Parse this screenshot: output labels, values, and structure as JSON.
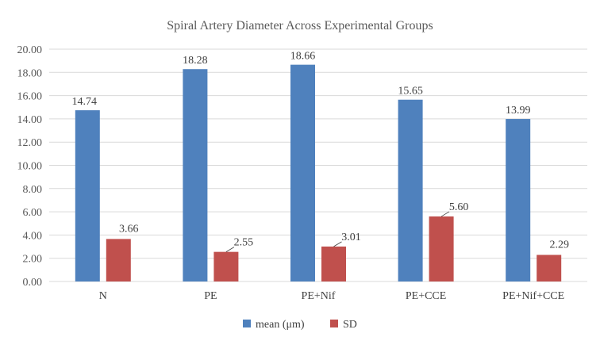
{
  "chart_data": {
    "type": "bar",
    "title": "Spiral Artery Diameter Across Experimental Groups",
    "xlabel": "",
    "ylabel": "",
    "categories": [
      "N",
      "PE",
      "PE+Nif",
      "PE+CCE",
      "PE+Nif+CCE"
    ],
    "series": [
      {
        "name": "mean (μm)",
        "color": "#4f81bd",
        "values": [
          14.74,
          18.28,
          18.66,
          15.65,
          13.99
        ],
        "labels": [
          "14.74",
          "18.28",
          "18.66",
          "15.65",
          "13.99"
        ]
      },
      {
        "name": "SD",
        "color": "#c0504d",
        "values": [
          3.66,
          2.55,
          3.01,
          5.6,
          2.29
        ],
        "labels": [
          "3.66",
          "2.55",
          "3.01",
          "5.60",
          "2.29"
        ]
      }
    ],
    "ylim": [
      0,
      20
    ],
    "ytick_step": 2,
    "ytick_labels": [
      "0.00",
      "2.00",
      "4.00",
      "6.00",
      "8.00",
      "10.00",
      "12.00",
      "14.00",
      "16.00",
      "18.00",
      "20.00"
    ],
    "grid": true,
    "legend_position": "bottom"
  }
}
